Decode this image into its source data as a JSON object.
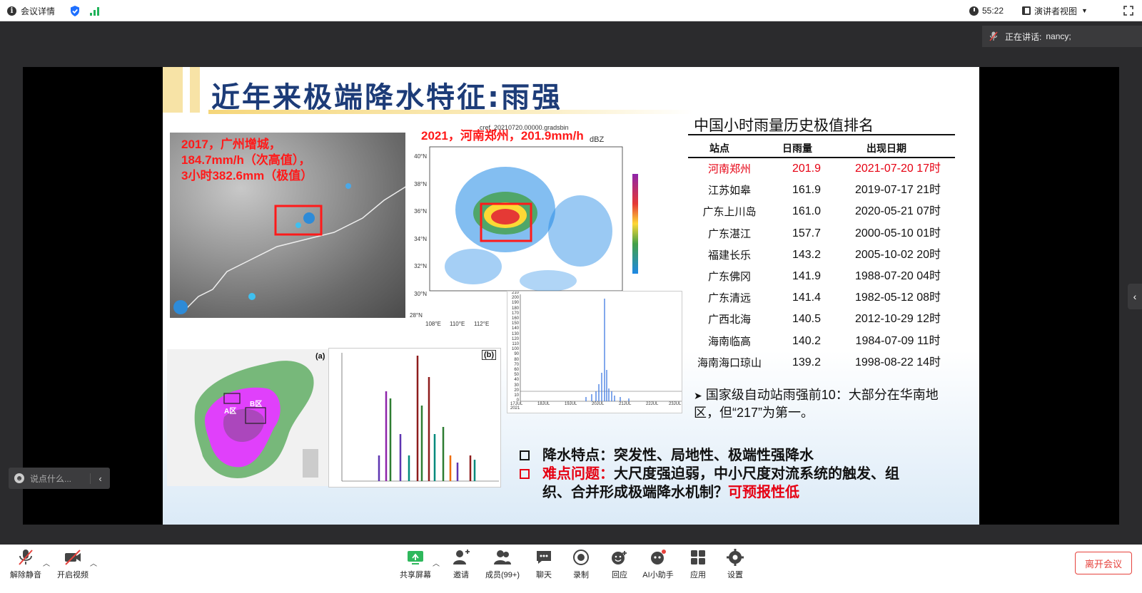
{
  "topbar": {
    "meeting_details": "会议详情",
    "timer": "55:22",
    "view_mode": "演讲者视图"
  },
  "speaking": {
    "label": "正在讲话:",
    "name": "nancy;"
  },
  "slide": {
    "title": "近年来极端降水特征:雨强",
    "caption_gz": [
      "2017，广州增城，",
      "184.7mm/h（次高值），",
      "3小时382.6mm（极值）"
    ],
    "caption_zz": "2021，河南郑州，201.9mm/h",
    "radar_header": "cref_20210720.00000.gradsbin",
    "radar_unit": "dBZ",
    "radar_lat_labels": [
      "40°N",
      "38°N",
      "36°N",
      "34°N",
      "32°N",
      "30°N",
      "28°N"
    ],
    "radar_lon_labels": [
      "108°E",
      "110°E",
      "112°E"
    ],
    "panel_a": "(a)",
    "panel_b": "(b)",
    "zone_a": "A区",
    "zone_b": "B区",
    "ts_y_labels": [
      "210",
      "200",
      "190",
      "180",
      "170",
      "160",
      "150",
      "140",
      "130",
      "120",
      "110",
      "100",
      "90",
      "80",
      "70",
      "60",
      "50",
      "40",
      "30",
      "20",
      "10",
      "0"
    ],
    "ts_x_labels": [
      "17JUL 2021",
      "18JUL",
      "19JUL",
      "20JUL",
      "21JUL",
      "22JUL",
      "23JUL"
    ],
    "table_title": "中国小时雨量历史极值排名",
    "table_headers": [
      "站点",
      "日雨量",
      "出现日期"
    ],
    "table_rows": [
      {
        "station": "河南郑州",
        "value": "201.9",
        "date": "2021-07-20 17时",
        "highlight": true
      },
      {
        "station": "江苏如皋",
        "value": "161.9",
        "date": "2019-07-17 21时"
      },
      {
        "station": "广东上川岛",
        "value": "161.0",
        "date": "2020-05-21 07时"
      },
      {
        "station": "广东湛江",
        "value": "157.7",
        "date": "2000-05-10 01时"
      },
      {
        "station": "福建长乐",
        "value": "143.2",
        "date": "2005-10-02 20时"
      },
      {
        "station": "广东佛冈",
        "value": "141.9",
        "date": "1988-07-20 04时"
      },
      {
        "station": "广东清远",
        "value": "141.4",
        "date": "1982-05-12 08时"
      },
      {
        "station": "广西北海",
        "value": "140.5",
        "date": "2012-10-29 12时"
      },
      {
        "station": "海南临高",
        "value": "140.2",
        "date": "1984-07-09 11时"
      },
      {
        "station": "海南海口琼山",
        "value": "139.2",
        "date": "1998-08-22 14时"
      }
    ],
    "note": "国家级自动站雨强前10：大部分在华南地区，但“217”为第一。",
    "point1": "降水特点：突发性、局地性、极端性强降水",
    "point2_label": "难点问题：",
    "point2_text": "大尺度强迫弱，中小尺度对流系统的触发、组",
    "point2_text2": "织、合并形成极端降水机制？",
    "point2_red": "可预报性低"
  },
  "comment": {
    "placeholder": "说点什么..."
  },
  "toolbar": {
    "unmute": "解除静音",
    "start_video": "开启视频",
    "share_screen": "共享屏幕",
    "invite": "邀请",
    "members": "成员(99+)",
    "chat": "聊天",
    "record": "录制",
    "reply": "回应",
    "ai_assistant": "AI小助手",
    "apps": "应用",
    "settings": "设置",
    "leave": "离开会议"
  },
  "colors": {
    "accent_red": "#e60012",
    "title_blue": "#1d3c78",
    "leave_red": "#e6423c"
  }
}
